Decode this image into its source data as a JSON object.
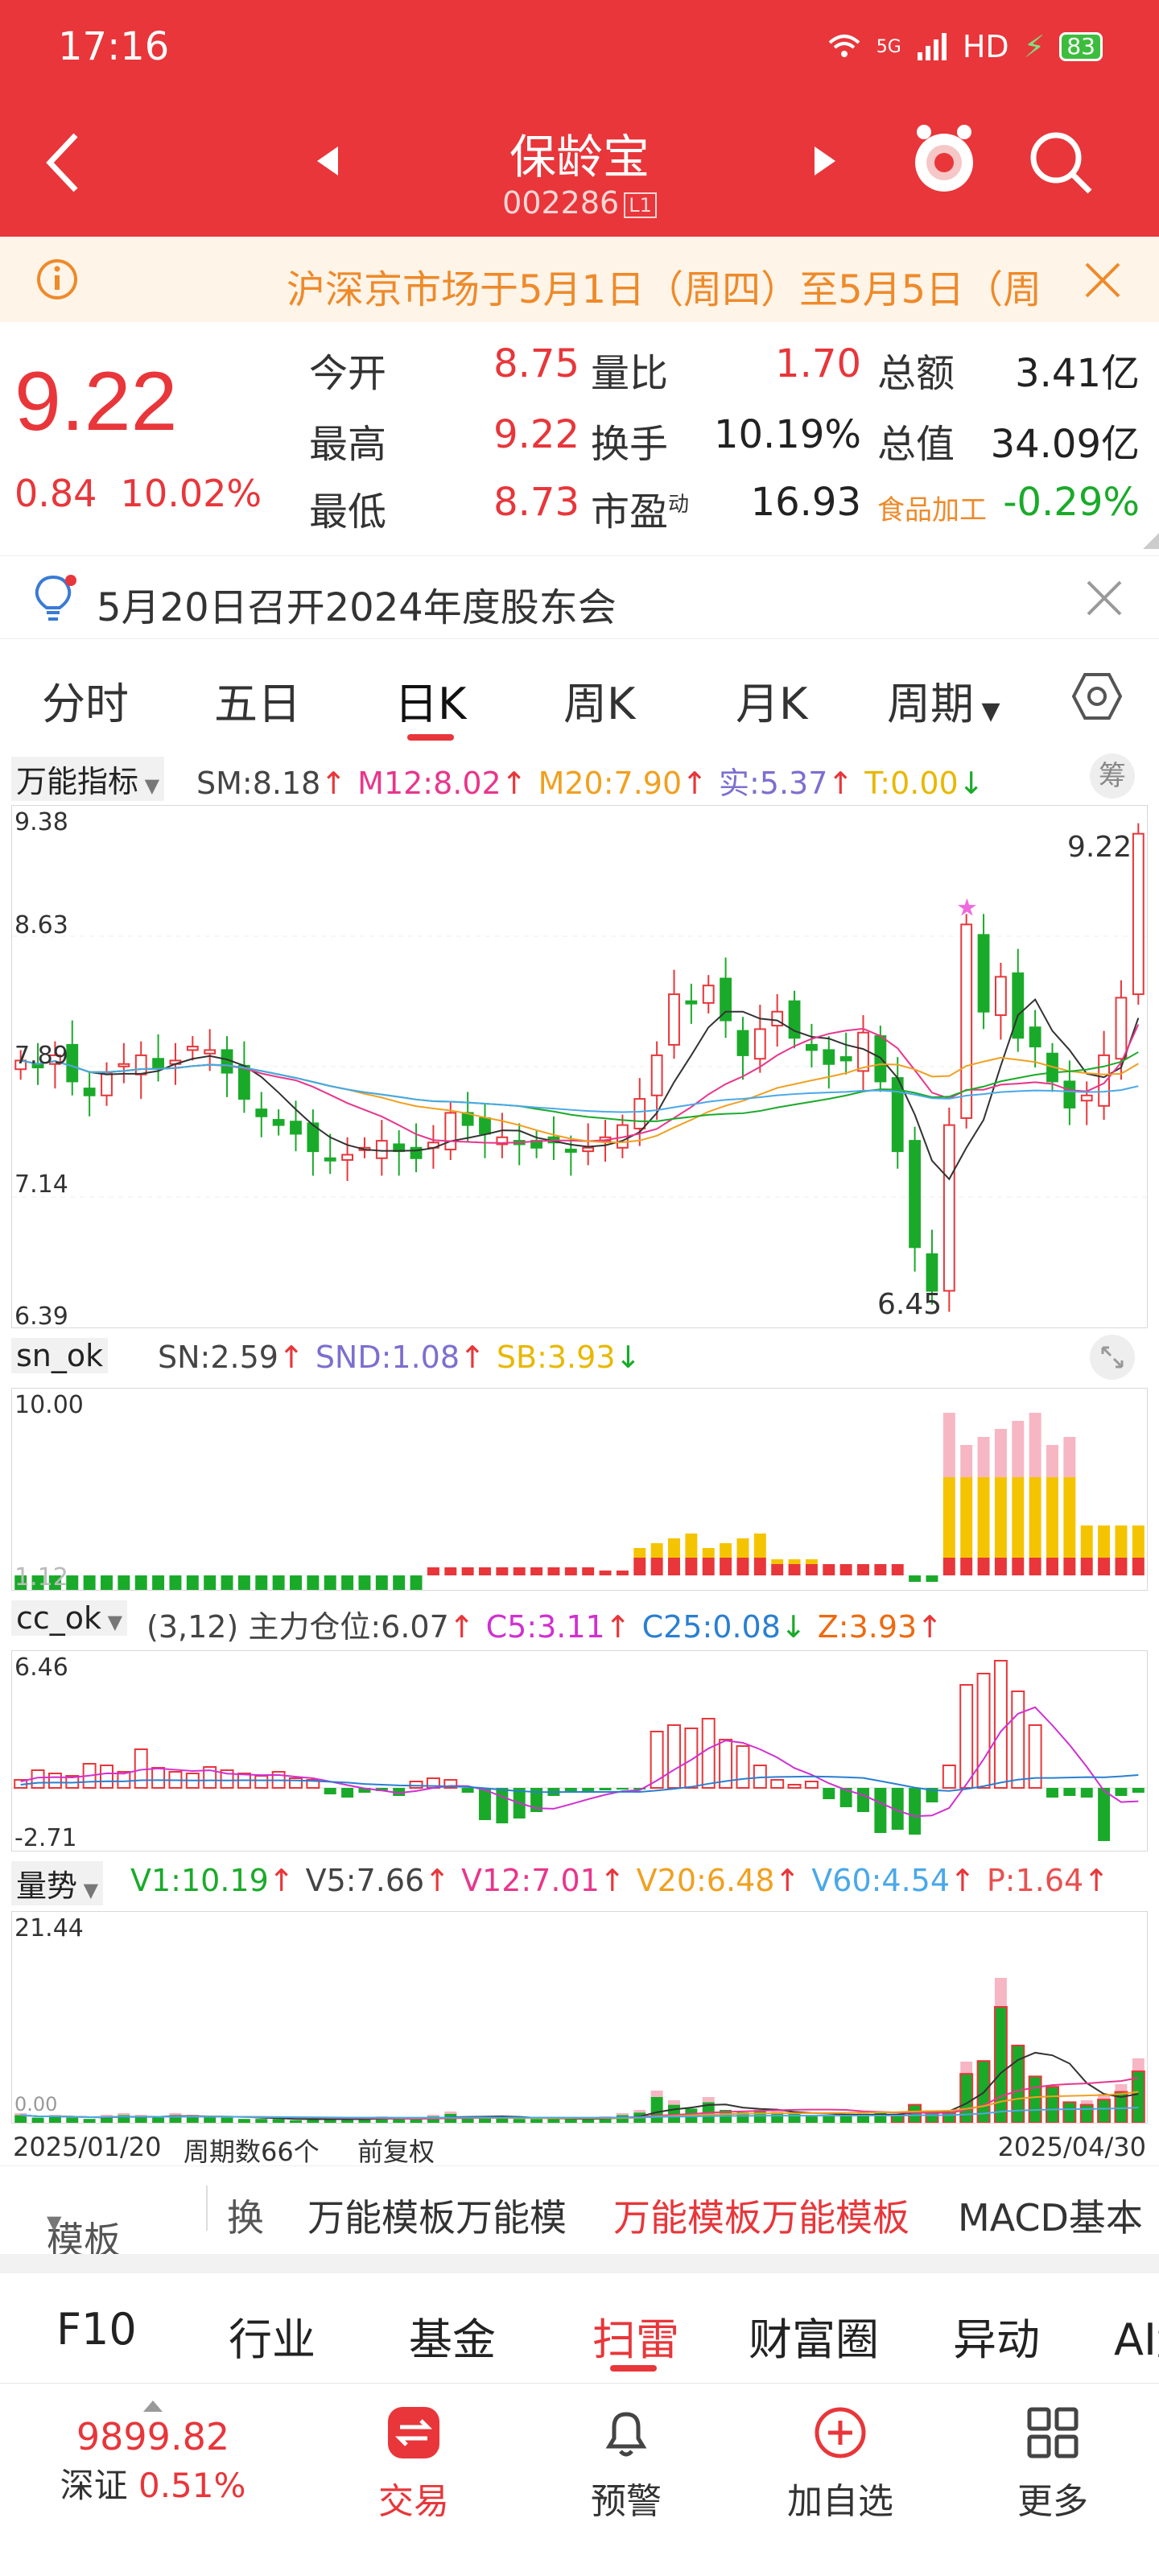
{
  "status": {
    "time": "17:16",
    "network": "5G",
    "hd": "HD",
    "battery": "83"
  },
  "header": {
    "title": "保龄宝",
    "code": "002286",
    "code_tag": "L1"
  },
  "notice": {
    "text": "沪深京市场于5月1日（周四）至5月5日（周"
  },
  "quote": {
    "price": "9.22",
    "change": "0.84",
    "change_pct": "10.02%",
    "fields": [
      {
        "label": "今开",
        "value": "8.75",
        "color": "red"
      },
      {
        "label": "量比",
        "value": "1.70",
        "color": "red"
      },
      {
        "label": "总额",
        "value": "3.41亿",
        "color": "black"
      },
      {
        "label": "最高",
        "value": "9.22",
        "color": "red"
      },
      {
        "label": "换手",
        "value": "10.19%",
        "color": "black"
      },
      {
        "label": "总值",
        "value": "34.09亿",
        "color": "black"
      },
      {
        "label": "最低",
        "value": "8.73",
        "color": "red"
      },
      {
        "label": "市盈",
        "label_sup": "动",
        "value": "16.93",
        "color": "black"
      },
      {
        "label": "食品加工",
        "value": "-0.29%",
        "color": "green"
      }
    ]
  },
  "event": {
    "text": "5月20日召开2024年度股东会"
  },
  "tabs": [
    "分时",
    "五日",
    "日K",
    "周K",
    "月K",
    "周期"
  ],
  "active_tab": "日K",
  "main_indicator": {
    "name": "万能指标",
    "items": [
      {
        "label": "SM:",
        "value": "8.18",
        "color": "#444444",
        "arrow": "↑"
      },
      {
        "label": "M12:",
        "value": "8.02",
        "color": "#e8368c",
        "arrow": "↑"
      },
      {
        "label": "M20:",
        "value": "7.90",
        "color": "#f0a020",
        "arrow": "↑"
      },
      {
        "label": "实:",
        "value": "5.37",
        "color": "#7c6fd0",
        "arrow": "↑"
      },
      {
        "label": "T:",
        "value": "0.00",
        "color": "#e8b800",
        "arrow": "↓"
      }
    ],
    "chip_button": "筹",
    "y_ticks": [
      "9.38",
      "8.63",
      "7.89",
      "7.14",
      "6.39"
    ],
    "last_label": "9.22",
    "low_label": "6.45"
  },
  "sn_indicator": {
    "name": "sn_ok",
    "items": [
      {
        "label": "SN:",
        "value": "2.59",
        "color": "#444444",
        "arrow": "↑"
      },
      {
        "label": "SND:",
        "value": "1.08",
        "color": "#7c6fd0",
        "arrow": "↑"
      },
      {
        "label": "SB:",
        "value": "3.93",
        "color": "#e8b800",
        "arrow": "↓"
      }
    ],
    "y_top": "10.00",
    "y_bottom": "1.12"
  },
  "cc_indicator": {
    "name": "cc_ok",
    "items": [
      {
        "label": "(3,12) 主力仓位:",
        "value": "6.07",
        "color": "#444444",
        "arrow": "↑"
      },
      {
        "label": "C5:",
        "value": "3.11",
        "color": "#d030d0",
        "arrow": "↑"
      },
      {
        "label": "C25:",
        "value": "0.08",
        "color": "#2a7fd0",
        "arrow": "↓"
      },
      {
        "label": "Z:",
        "value": "3.93",
        "color": "#ee6a10",
        "arrow": "↑"
      }
    ],
    "y_top": "6.46",
    "y_bottom": "-2.71"
  },
  "vol_indicator": {
    "name": "量势",
    "items": [
      {
        "label": "V1:",
        "value": "10.19",
        "color": "#1aaa2a",
        "arrow": "↑"
      },
      {
        "label": "V5:",
        "value": "7.66",
        "color": "#444444",
        "arrow": "↑"
      },
      {
        "label": "V12:",
        "value": "7.01",
        "color": "#e8368c",
        "arrow": "↑"
      },
      {
        "label": "V20:",
        "value": "6.48",
        "color": "#f0a020",
        "arrow": "↑"
      },
      {
        "label": "V60:",
        "value": "4.54",
        "color": "#4aa8e8",
        "arrow": "↑"
      },
      {
        "label": "P:",
        "value": "1.64",
        "color": "#e85050",
        "arrow": "↑"
      }
    ],
    "y_top": "21.44",
    "y_bottom": "0.00"
  },
  "footer": {
    "start_date": "2025/01/20",
    "period_count": "周期数66个",
    "adjust": "前复权",
    "end_date": "2025/04/30"
  },
  "templates": [
    "模板",
    "换",
    "万能模板万能模",
    "万能模板万能模板",
    "MACD基本"
  ],
  "func_tabs": [
    "F10",
    "行业",
    "基金",
    "扫雷",
    "财富圈",
    "异动",
    "AI盘"
  ],
  "active_func": "扫雷",
  "bottom_nav": {
    "index_value": "9899.82",
    "index_name": "深证",
    "index_change": "0.51%",
    "items": [
      "交易",
      "预警",
      "加自选",
      "更多"
    ]
  },
  "colors": {
    "brand": "#e8363a",
    "up": "#e8363a",
    "down": "#1aaa2a"
  }
}
